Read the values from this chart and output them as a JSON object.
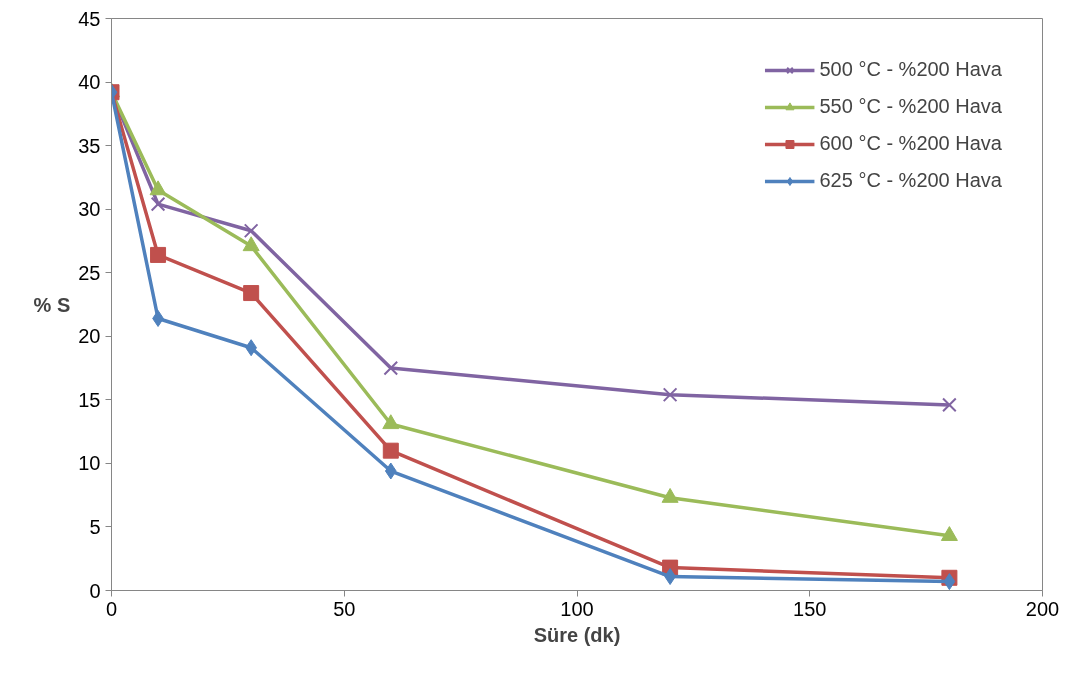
{
  "chart_data": {
    "type": "line",
    "xlabel": "Süre (dk)",
    "ylabel": "% S",
    "x": [
      0,
      10,
      30,
      60,
      120,
      180
    ],
    "xlim": [
      0,
      200
    ],
    "xticks": [
      0,
      50,
      100,
      150,
      200
    ],
    "ylim": [
      0,
      45
    ],
    "yticks": [
      0,
      5,
      10,
      15,
      20,
      25,
      30,
      35,
      40,
      45
    ],
    "grid": false,
    "legend": "top right",
    "line_style": "solid",
    "series": [
      {
        "name": "500 °C - %200 Hava",
        "color": "#8064a2",
        "marker": "cross",
        "values": [
          39.2,
          30.4,
          28.3,
          17.5,
          15.4,
          14.6
        ]
      },
      {
        "name": "550 °C - %200 Hava",
        "color": "#9bbb59",
        "marker": "triangle",
        "values": [
          39.2,
          31.5,
          27.1,
          13.1,
          7.3,
          4.3
        ]
      },
      {
        "name": "600 °C - %200 Hava",
        "color": "#c0504d",
        "marker": "square",
        "values": [
          39.2,
          26.4,
          23.4,
          11.0,
          1.8,
          1.0
        ]
      },
      {
        "name": "625 °C - %200 Hava",
        "color": "#4f81bd",
        "marker": "diamond",
        "values": [
          39.2,
          21.4,
          19.1,
          9.4,
          1.1,
          0.7
        ]
      }
    ]
  }
}
